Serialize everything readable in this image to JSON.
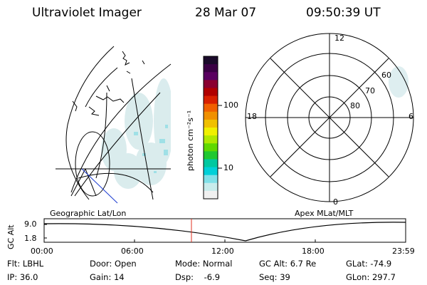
{
  "header": {
    "instrument": "Ultraviolet Imager",
    "date": "28 Mar 07",
    "time": "09:50:39 UT"
  },
  "colorbar": {
    "label": "photon cm⁻²s⁻¹",
    "ticks": [
      "100",
      "10"
    ],
    "colors": [
      "#1a0a2a",
      "#3a0044",
      "#5a0060",
      "#8a0030",
      "#b00000",
      "#d82000",
      "#f06000",
      "#f09000",
      "#f0c000",
      "#f0f000",
      "#b0e800",
      "#60d800",
      "#20c830",
      "#00c8a0",
      "#00d0d8",
      "#80e0e8",
      "#c8ecec",
      "#f0f0f0"
    ]
  },
  "geo_map": {
    "caption": "Geographic Lat/Lon"
  },
  "polar_plot": {
    "caption": "Apex MLat/MLT",
    "hour_labels": [
      "12",
      "18",
      "6",
      "0"
    ],
    "lat_labels": [
      "60",
      "70",
      "80"
    ]
  },
  "altitude_plot": {
    "ylabel": "GC Alt",
    "y_ticks": [
      "9.0",
      "1.8"
    ],
    "x_ticks": [
      "00:00",
      "06:00",
      "12:00",
      "18:00",
      "23:59"
    ],
    "marker_color": "#e03020"
  },
  "info": {
    "row1": [
      "Flt: LBHL",
      "Door: Open",
      "Mode: Normal",
      "GC Alt: 6.7 Re",
      "GLat: -74.9"
    ],
    "row2": [
      "IP: 36.0",
      "Gain: 14",
      "Dsp:    -6.9",
      "Seq: 39",
      "GLon: 297.7"
    ]
  }
}
